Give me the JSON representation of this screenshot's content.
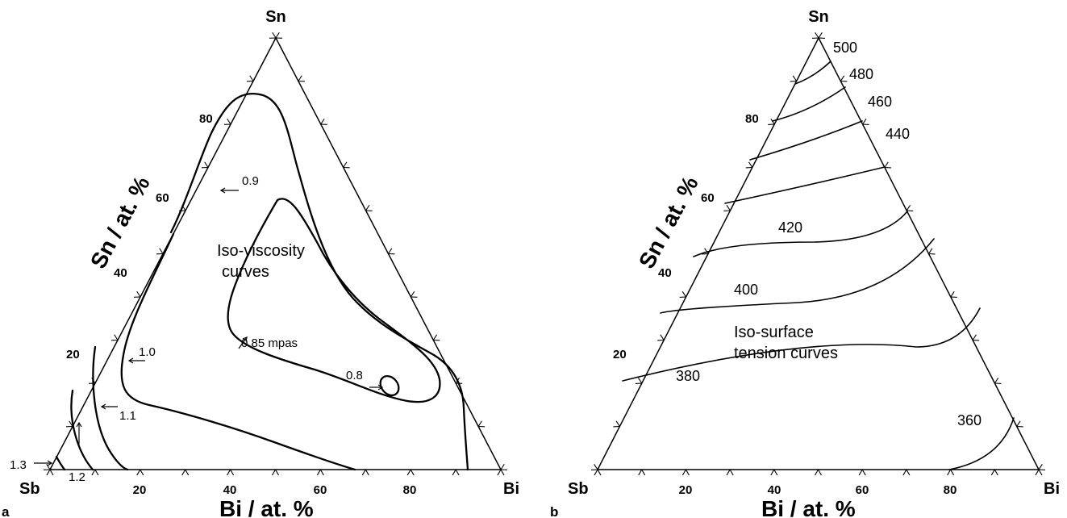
{
  "panel_a": {
    "letter": "a",
    "vertex_top": "Sn",
    "vertex_left": "Sb",
    "vertex_right": "Bi",
    "left_axis_title": "Sn  / at. %",
    "bottom_axis_title": "Bi  / at. %",
    "left_ticks": [
      "80",
      "60",
      "40",
      "20"
    ],
    "bottom_ticks": [
      "20",
      "40",
      "60",
      "80"
    ],
    "annotation_text": [
      "Iso-viscosity",
      "curves"
    ],
    "contour_labels": [
      "0.9",
      "1.0",
      "1.1",
      "1.2",
      "1.3",
      "0.85 mpas",
      "0.8"
    ]
  },
  "panel_b": {
    "letter": "b",
    "vertex_top": "Sn",
    "vertex_left": "Sb",
    "vertex_right": "Bi",
    "left_axis_title": "Sn  / at. %",
    "bottom_axis_title": "Bi  / at. %",
    "left_ticks": [
      "80",
      "60",
      "40",
      "20"
    ],
    "bottom_ticks": [
      "20",
      "40",
      "60",
      "80"
    ],
    "annotation_text": [
      "Iso-surface",
      "tension curves"
    ],
    "contour_labels": [
      "500",
      "480",
      "460",
      "440",
      "420",
      "400",
      "380",
      "360"
    ]
  }
}
